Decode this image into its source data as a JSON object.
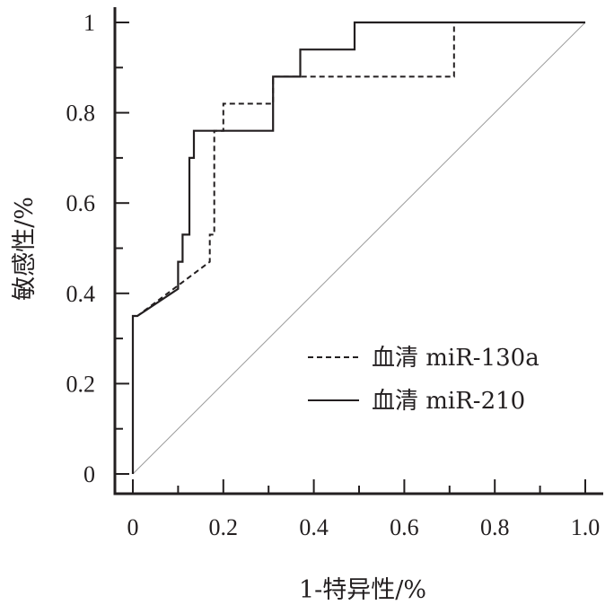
{
  "chart_data": {
    "type": "line",
    "xlabel": "1-特异性/%",
    "ylabel": "敏感性/%",
    "xlim": [
      0,
      1.0
    ],
    "ylim": [
      0,
      1
    ],
    "x_ticks": [
      "0",
      "0.2",
      "0.4",
      "0.6",
      "0.8",
      "1.0"
    ],
    "y_ticks": [
      "0",
      "0.2",
      "0.4",
      "0.6",
      "0.8",
      "1"
    ],
    "x_tick_values": [
      0,
      0.2,
      0.4,
      0.6,
      0.8,
      1.0
    ],
    "y_tick_values": [
      0,
      0.2,
      0.4,
      0.6,
      0.8,
      1
    ],
    "grid": false,
    "legend_position": "bottom-right",
    "series": [
      {
        "name": "血清 miR-130a",
        "line_style": "dashed",
        "color": "#231f20",
        "x": [
          0,
          0,
          0.01,
          0.17,
          0.17,
          0.18,
          0.18,
          0.2,
          0.2,
          0.31,
          0.31,
          0.71,
          0.71,
          1.0
        ],
        "y": [
          0,
          0.35,
          0.35,
          0.47,
          0.53,
          0.53,
          0.76,
          0.76,
          0.82,
          0.82,
          0.88,
          0.88,
          1.0,
          1.0
        ]
      },
      {
        "name": "血清 miR-210",
        "line_style": "solid",
        "color": "#231f20",
        "x": [
          0,
          0,
          0.01,
          0.1,
          0.1,
          0.11,
          0.11,
          0.125,
          0.125,
          0.135,
          0.135,
          0.31,
          0.31,
          0.37,
          0.37,
          0.49,
          0.49,
          1.0
        ],
        "y": [
          0,
          0.35,
          0.35,
          0.41,
          0.47,
          0.47,
          0.53,
          0.53,
          0.7,
          0.7,
          0.76,
          0.76,
          0.88,
          0.88,
          0.94,
          0.94,
          1.0,
          1.0
        ]
      },
      {
        "line_style": "reference-diagonal",
        "color": "#9a9a9a",
        "x": [
          0,
          1.0
        ],
        "y": [
          0,
          1.0
        ]
      }
    ]
  }
}
